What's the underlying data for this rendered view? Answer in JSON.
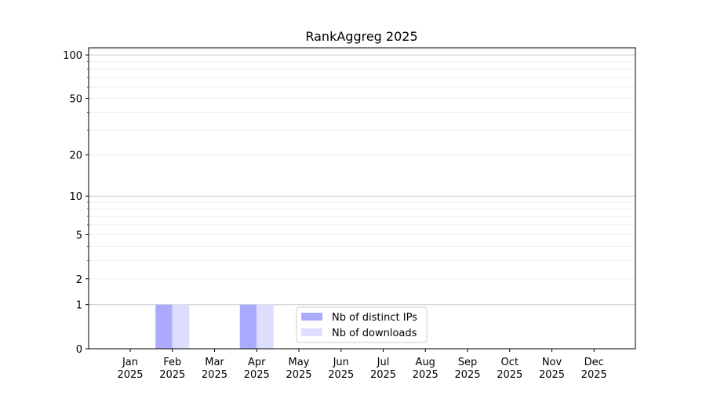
{
  "chart_data": {
    "type": "bar",
    "title": "RankAggreg 2025",
    "xlabel": "",
    "ylabel": "",
    "y_scale": "log(1+y)",
    "ylim": [
      0,
      112
    ],
    "y_ticks": [
      0,
      1,
      2,
      5,
      10,
      20,
      50,
      100
    ],
    "y_tick_labels": [
      "0",
      "1",
      "2",
      "5",
      "10",
      "20",
      "50",
      "100"
    ],
    "y_minor_ticks": [
      3,
      4,
      6,
      7,
      8,
      9,
      30,
      40,
      60,
      70,
      80,
      90
    ],
    "grid": true,
    "categories": [
      "Jan",
      "Feb",
      "Mar",
      "Apr",
      "May",
      "Jun",
      "Jul",
      "Aug",
      "Sep",
      "Oct",
      "Nov",
      "Dec"
    ],
    "category_year": "2025",
    "series": [
      {
        "name": "Nb of distinct IPs",
        "color": "#aaaaff",
        "values": [
          0,
          1,
          0,
          1,
          0,
          0,
          0,
          0,
          0,
          0,
          0,
          0
        ]
      },
      {
        "name": "Nb of downloads",
        "color": "#ddddff",
        "values": [
          0,
          1,
          0,
          1,
          0,
          0,
          0,
          0,
          0,
          0,
          0,
          0
        ]
      }
    ],
    "legend_position": "lower-center"
  }
}
